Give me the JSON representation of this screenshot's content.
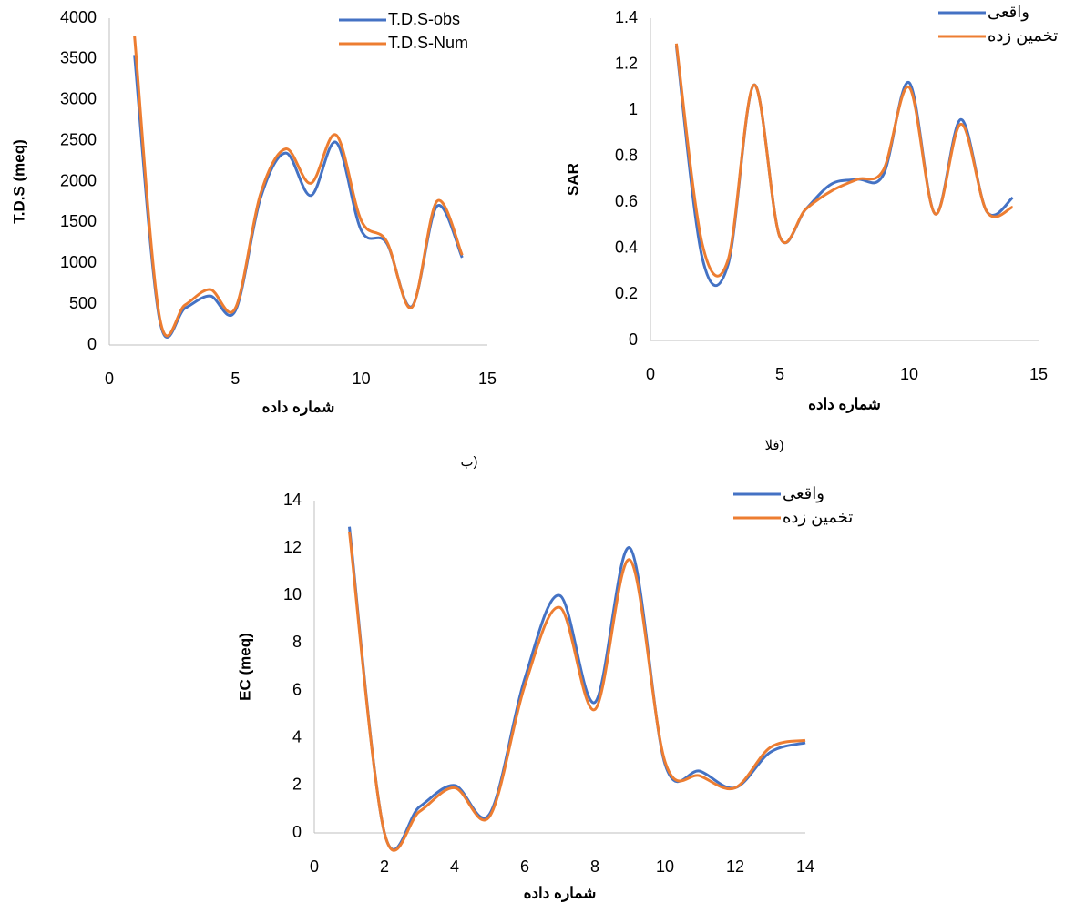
{
  "chart_data": [
    {
      "type": "line",
      "caption": "ب)",
      "x_label": "شماره داده",
      "y_label": "T.D.S (meq)",
      "xlim": [
        0,
        15
      ],
      "xticks": [
        0,
        5,
        10,
        15
      ],
      "ylim": [
        0,
        4000
      ],
      "yticks": [
        0,
        500,
        1000,
        1500,
        2000,
        2500,
        3000,
        3500,
        4000
      ],
      "legend": "top-right",
      "smooth": true,
      "x": [
        1,
        2,
        3,
        4,
        5,
        6,
        7,
        8,
        9,
        10,
        11,
        12,
        13,
        14
      ],
      "series": [
        {
          "name": "T.D.S-obs",
          "color": "#4472c4",
          "values": [
            3550,
            300,
            450,
            600,
            420,
            1800,
            2350,
            1830,
            2480,
            1400,
            1250,
            470,
            1700,
            1070
          ]
        },
        {
          "name": "T.D.S-Num",
          "color": "#ed7d31",
          "values": [
            3780,
            330,
            490,
            680,
            450,
            1850,
            2400,
            1980,
            2570,
            1520,
            1270,
            460,
            1760,
            1100
          ]
        }
      ]
    },
    {
      "type": "line",
      "caption": "الف)",
      "x_label": "شماره داده",
      "y_label": "SAR",
      "xlim": [
        0,
        15
      ],
      "xticks": [
        0,
        5,
        10,
        15
      ],
      "ylim": [
        0,
        1.4
      ],
      "yticks": [
        0,
        0.2,
        0.4,
        0.6,
        0.8,
        1,
        1.2,
        1.4
      ],
      "legend": "top-right",
      "smooth": true,
      "x": [
        1,
        2,
        3,
        4,
        5,
        6,
        7,
        8,
        9,
        10,
        11,
        12,
        13,
        14
      ],
      "series": [
        {
          "name": "واقعی",
          "color": "#4472c4",
          "values": [
            1.28,
            0.36,
            0.33,
            1.11,
            0.45,
            0.57,
            0.68,
            0.7,
            0.72,
            1.12,
            0.55,
            0.96,
            0.56,
            0.62
          ]
        },
        {
          "name": "تخمین زده",
          "color": "#ed7d31",
          "values": [
            1.29,
            0.42,
            0.35,
            1.11,
            0.45,
            0.57,
            0.65,
            0.7,
            0.74,
            1.1,
            0.55,
            0.94,
            0.56,
            0.58
          ]
        }
      ]
    },
    {
      "type": "line",
      "x_label": "شماره داده",
      "y_label": "EC (meq)",
      "xlim": [
        0,
        14
      ],
      "xticks": [
        0,
        2,
        4,
        6,
        8,
        10,
        12,
        14
      ],
      "ylim": [
        0,
        14
      ],
      "yticks": [
        0,
        2,
        4,
        6,
        8,
        10,
        12,
        14
      ],
      "legend": "top-right",
      "smooth": true,
      "x": [
        1,
        2,
        3,
        4,
        5,
        6,
        7,
        8,
        9,
        10,
        11,
        12,
        13,
        14
      ],
      "series": [
        {
          "name": "واقعی",
          "color": "#4472c4",
          "values": [
            12.9,
            0,
            1.1,
            2.0,
            0.8,
            6.5,
            10.0,
            5.5,
            12.0,
            2.9,
            2.6,
            1.9,
            3.4,
            3.8
          ]
        },
        {
          "name": "تخمین زده",
          "color": "#ed7d31",
          "values": [
            12.7,
            0,
            0.9,
            1.9,
            0.7,
            6.2,
            9.5,
            5.2,
            11.5,
            3.0,
            2.4,
            1.9,
            3.6,
            3.9
          ]
        }
      ]
    }
  ]
}
